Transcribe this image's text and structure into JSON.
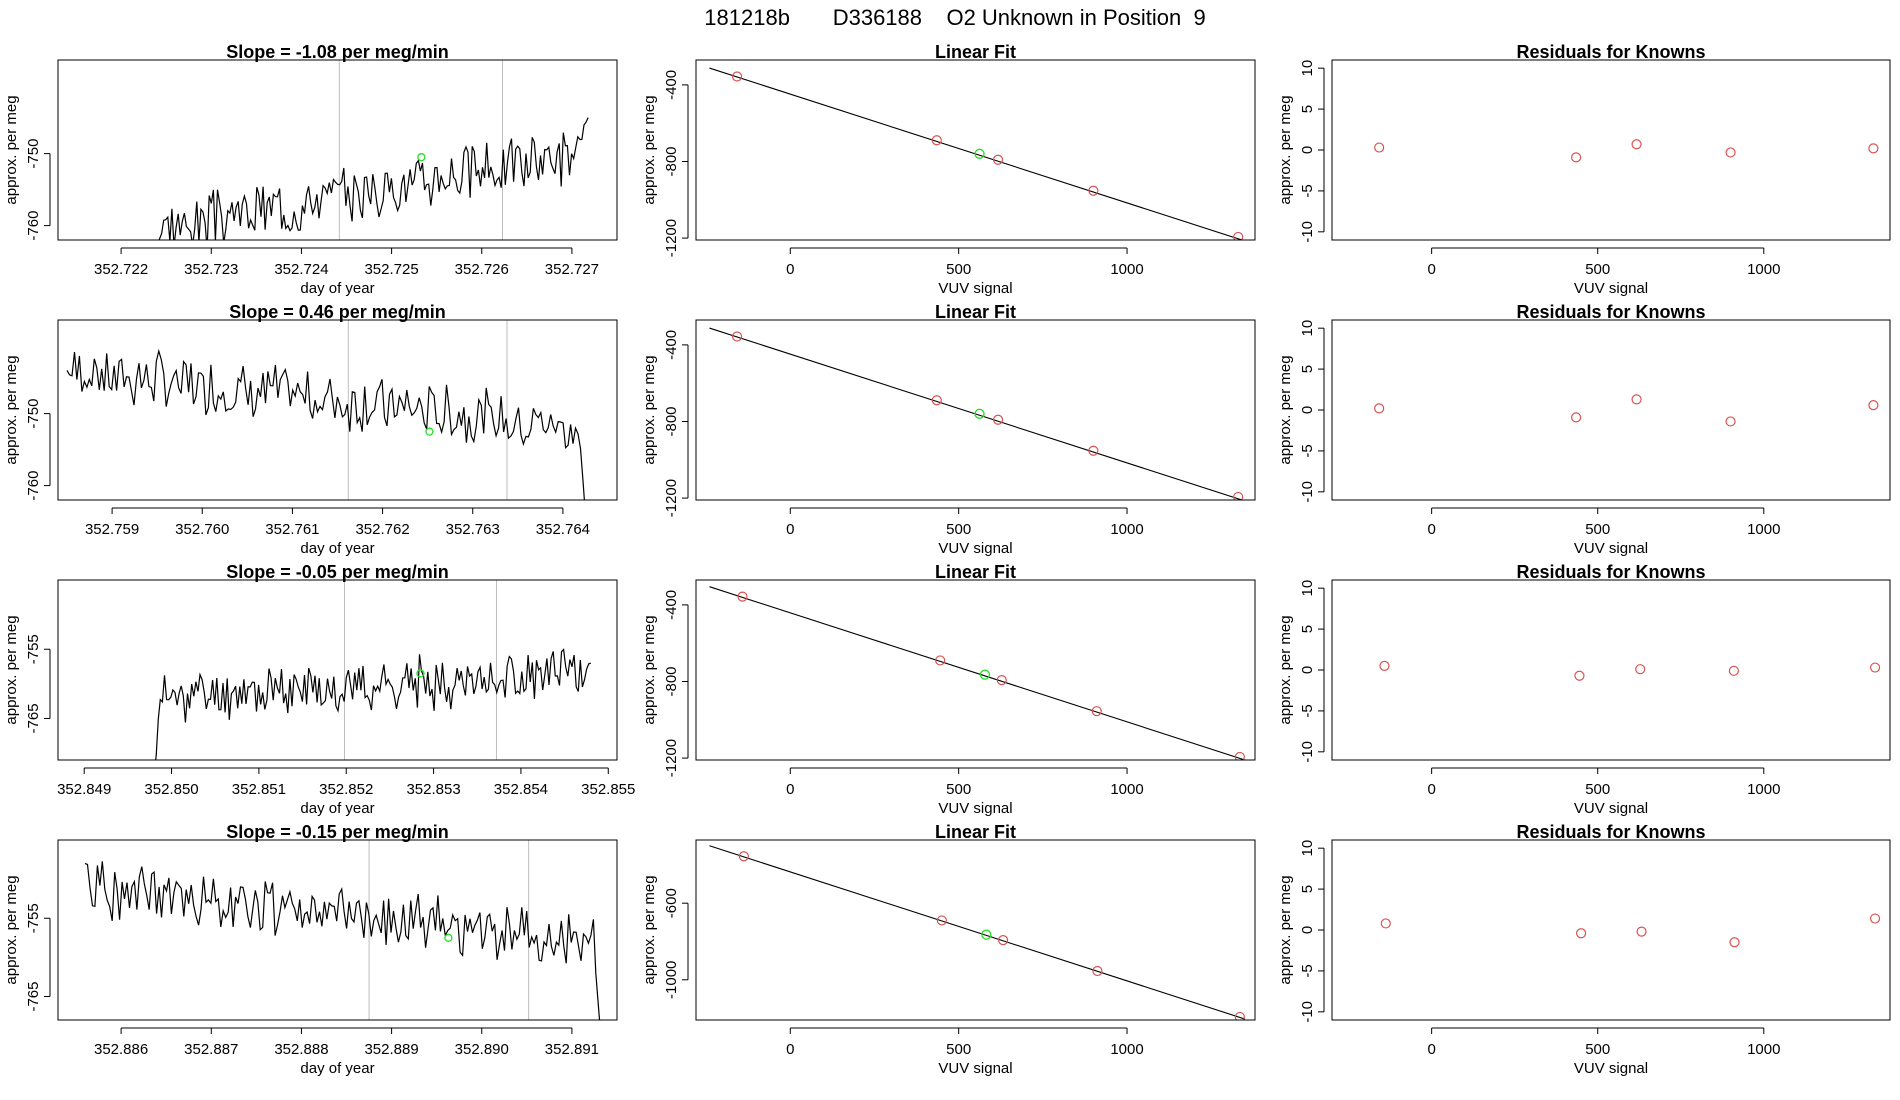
{
  "figure": {
    "title": "181218b       D336188    O2 Unknown in Position  9"
  },
  "colors": {
    "line": "#000000",
    "axis": "#000000",
    "vline": "#bebebe",
    "known_point": "#d9534f",
    "unknown_point": "#22dd22"
  },
  "chart_data": [
    {
      "type": "line",
      "panel": "ts-1",
      "title": "Slope =  -1.08  per meg/min",
      "xlabel": "day of year",
      "ylabel": "approx. per meg",
      "xlim": [
        352.7213,
        352.7275
      ],
      "ylim": [
        -762,
        -737
      ],
      "xticks": [
        352.722,
        352.723,
        352.724,
        352.725,
        352.726,
        352.727
      ],
      "xtick_labels": [
        "352.722",
        "352.723",
        "352.724",
        "352.725",
        "352.726",
        "352.727"
      ],
      "yticks": [
        -750,
        -760
      ],
      "ytick_labels": [
        "-750",
        "-760"
      ],
      "vlines": [
        352.72442,
        352.72623
      ],
      "marker": {
        "x": 352.72533,
        "y": -750.5
      },
      "series": {
        "x_start": 352.72238,
        "x_end": 352.72718,
        "y_start": -764,
        "y_end": -745,
        "mean": -750.5,
        "amplitude": 3.2,
        "trend_start": -760.5,
        "trend_end": -749.5,
        "seed": 3
      }
    },
    {
      "type": "line",
      "panel": "ts-2",
      "title": "Slope =  0.46  per meg/min",
      "xlabel": "day of year",
      "ylabel": "approx. per meg",
      "xlim": [
        352.7584,
        352.7646
      ],
      "ylim": [
        -762,
        -737
      ],
      "xticks": [
        352.759,
        352.76,
        352.761,
        352.762,
        352.763,
        352.764
      ],
      "xtick_labels": [
        "352.759",
        "352.760",
        "352.761",
        "352.762",
        "352.763",
        "352.764"
      ],
      "yticks": [
        -750,
        -760
      ],
      "ytick_labels": [
        "-750",
        "-760"
      ],
      "vlines": [
        352.76162,
        352.76338
      ],
      "marker": {
        "x": 352.76252,
        "y": -752.5
      },
      "series": {
        "x_start": 352.7585,
        "x_end": 352.76425,
        "y_start": -744,
        "y_end": -764,
        "mean": -752.5,
        "amplitude": 3.2,
        "trend_start": -744,
        "trend_end": -752,
        "seed": 7
      }
    },
    {
      "type": "line",
      "panel": "ts-3",
      "title": "Slope =  -0.05  per meg/min",
      "xlabel": "day of year",
      "ylabel": "approx. per meg",
      "xlim": [
        352.8487,
        352.8551
      ],
      "ylim": [
        -771,
        -745
      ],
      "xticks": [
        352.849,
        352.85,
        352.851,
        352.852,
        352.853,
        352.854,
        352.855
      ],
      "xtick_labels": [
        "352.849",
        "352.850",
        "352.851",
        "352.852",
        "352.853",
        "352.854",
        "352.855"
      ],
      "yticks": [
        -755,
        -765
      ],
      "ytick_labels": [
        "-755",
        "-765"
      ],
      "vlines": [
        352.85198,
        352.85372
      ],
      "marker": {
        "x": 352.85285,
        "y": -758.5
      },
      "series": {
        "x_start": 352.8498,
        "x_end": 352.8548,
        "y_start": -773,
        "y_end": -757,
        "mean": -758.5,
        "amplitude": 3.0,
        "trend_start": -762,
        "trend_end": -758.5,
        "seed": 11
      }
    },
    {
      "type": "line",
      "panel": "ts-4",
      "title": "Slope =  -0.15  per meg/min",
      "xlabel": "day of year",
      "ylabel": "approx. per meg",
      "xlim": [
        352.8853,
        352.8915
      ],
      "ylim": [
        -768,
        -745
      ],
      "xticks": [
        352.886,
        352.887,
        352.888,
        352.889,
        352.89,
        352.891
      ],
      "xtick_labels": [
        "352.886",
        "352.887",
        "352.888",
        "352.889",
        "352.890",
        "352.891"
      ],
      "yticks": [
        -755,
        -765
      ],
      "ytick_labels": [
        "-755",
        "-765"
      ],
      "vlines": [
        352.88875,
        352.89052
      ],
      "marker": {
        "x": 352.88963,
        "y": -757.5
      },
      "series": {
        "x_start": 352.8856,
        "x_end": 352.89132,
        "y_start": -748,
        "y_end": -770,
        "mean": -757.5,
        "amplitude": 3.0,
        "trend_start": -751,
        "trend_end": -758,
        "seed": 19
      }
    },
    {
      "type": "scatter",
      "panel": "fit-1",
      "title": "Linear Fit",
      "xlabel": "VUV signal",
      "ylabel": "approx. per meg",
      "xlim": [
        -280,
        1380
      ],
      "ylim": [
        -1210,
        -270
      ],
      "xticks": [
        0,
        500,
        1000
      ],
      "xtick_labels": [
        "0",
        "500",
        "1000"
      ],
      "yticks": [
        -400,
        -800,
        -1200
      ],
      "ytick_labels": [
        "-400",
        "-800",
        "-1200"
      ],
      "fit_line": {
        "x": [
          -240,
          1350
        ],
        "y": [
          -312,
          -1215
        ]
      },
      "points": [
        {
          "x": -158,
          "y": -356
        },
        {
          "x": 435,
          "y": -689
        },
        {
          "x": 617,
          "y": -791
        },
        {
          "x": 900,
          "y": -953
        },
        {
          "x": 1330,
          "y": -1194
        }
      ],
      "unknown": {
        "x": 562,
        "y": -760
      }
    },
    {
      "type": "scatter",
      "panel": "fit-2",
      "title": "Linear Fit",
      "xlabel": "VUV signal",
      "ylabel": "approx. per meg",
      "xlim": [
        -280,
        1380
      ],
      "ylim": [
        -1210,
        -270
      ],
      "xticks": [
        0,
        500,
        1000
      ],
      "xtick_labels": [
        "0",
        "500",
        "1000"
      ],
      "yticks": [
        -400,
        -800,
        -1200
      ],
      "ytick_labels": [
        "-400",
        "-800",
        "-1200"
      ],
      "fit_line": {
        "x": [
          -240,
          1350
        ],
        "y": [
          -312,
          -1215
        ]
      },
      "points": [
        {
          "x": -158,
          "y": -356
        },
        {
          "x": 435,
          "y": -689
        },
        {
          "x": 617,
          "y": -791
        },
        {
          "x": 900,
          "y": -953
        },
        {
          "x": 1330,
          "y": -1194
        }
      ],
      "unknown": {
        "x": 562,
        "y": -760
      }
    },
    {
      "type": "scatter",
      "panel": "fit-3",
      "title": "Linear Fit",
      "xlabel": "VUV signal",
      "ylabel": "approx. per meg",
      "xlim": [
        -280,
        1380
      ],
      "ylim": [
        -1210,
        -270
      ],
      "xticks": [
        0,
        500,
        1000
      ],
      "xtick_labels": [
        "0",
        "500",
        "1000"
      ],
      "yticks": [
        -400,
        -800,
        -1200
      ],
      "ytick_labels": [
        "-400",
        "-800",
        "-1200"
      ],
      "fit_line": {
        "x": [
          -240,
          1350
        ],
        "y": [
          -305,
          -1210
        ]
      },
      "points": [
        {
          "x": -142,
          "y": -357
        },
        {
          "x": 445,
          "y": -690
        },
        {
          "x": 628,
          "y": -793
        },
        {
          "x": 910,
          "y": -955
        },
        {
          "x": 1335,
          "y": -1194
        }
      ],
      "unknown": {
        "x": 578,
        "y": -764
      }
    },
    {
      "type": "scatter",
      "panel": "fit-4",
      "title": "Linear Fit",
      "xlabel": "VUV signal",
      "ylabel": "approx. per meg",
      "xlim": [
        -280,
        1380
      ],
      "ylim": [
        -1210,
        -270
      ],
      "xticks": [
        0,
        500,
        1000
      ],
      "xtick_labels": [
        "0",
        "500",
        "1000"
      ],
      "yticks": [
        -600,
        -1000
      ],
      "ytick_labels": [
        "-600",
        "-1000"
      ],
      "fit_line": {
        "x": [
          -240,
          1350
        ],
        "y": [
          -300,
          -1205
        ]
      },
      "points": [
        {
          "x": -138,
          "y": -355
        },
        {
          "x": 450,
          "y": -690
        },
        {
          "x": 632,
          "y": -793
        },
        {
          "x": 912,
          "y": -954
        },
        {
          "x": 1335,
          "y": -1194
        }
      ],
      "unknown": {
        "x": 582,
        "y": -764
      }
    },
    {
      "type": "scatter",
      "panel": "res-1",
      "title": "Residuals for Knowns",
      "xlabel": "VUV signal",
      "ylabel": "approx. per meg",
      "xlim": [
        -300,
        1380
      ],
      "ylim": [
        -11,
        11
      ],
      "xticks": [
        0,
        500,
        1000
      ],
      "xtick_labels": [
        "0",
        "500",
        "1000"
      ],
      "yticks": [
        10,
        5,
        0,
        -5,
        -10
      ],
      "ytick_labels": [
        "10",
        "5",
        "0",
        "-5",
        "-10"
      ],
      "points": [
        {
          "x": -158,
          "y": 0.3
        },
        {
          "x": 435,
          "y": -0.9
        },
        {
          "x": 617,
          "y": 0.7
        },
        {
          "x": 900,
          "y": -0.3
        },
        {
          "x": 1330,
          "y": 0.2
        }
      ]
    },
    {
      "type": "scatter",
      "panel": "res-2",
      "title": "Residuals for Knowns",
      "xlabel": "VUV signal",
      "ylabel": "approx. per meg",
      "xlim": [
        -300,
        1380
      ],
      "ylim": [
        -11,
        11
      ],
      "xticks": [
        0,
        500,
        1000
      ],
      "xtick_labels": [
        "0",
        "500",
        "1000"
      ],
      "yticks": [
        10,
        5,
        0,
        -5,
        -10
      ],
      "ytick_labels": [
        "10",
        "5",
        "0",
        "-5",
        "-10"
      ],
      "points": [
        {
          "x": -158,
          "y": 0.2
        },
        {
          "x": 435,
          "y": -0.9
        },
        {
          "x": 617,
          "y": 1.3
        },
        {
          "x": 900,
          "y": -1.4
        },
        {
          "x": 1330,
          "y": 0.6
        }
      ]
    },
    {
      "type": "scatter",
      "panel": "res-3",
      "title": "Residuals for Knowns",
      "xlabel": "VUV signal",
      "ylabel": "approx. per meg",
      "xlim": [
        -300,
        1380
      ],
      "ylim": [
        -11,
        11
      ],
      "xticks": [
        0,
        500,
        1000
      ],
      "xtick_labels": [
        "0",
        "500",
        "1000"
      ],
      "yticks": [
        10,
        5,
        0,
        -5,
        -10
      ],
      "ytick_labels": [
        "10",
        "5",
        "0",
        "-5",
        "-10"
      ],
      "points": [
        {
          "x": -142,
          "y": 0.5
        },
        {
          "x": 445,
          "y": -0.7
        },
        {
          "x": 628,
          "y": 0.1
        },
        {
          "x": 910,
          "y": -0.1
        },
        {
          "x": 1335,
          "y": 0.3
        }
      ]
    },
    {
      "type": "scatter",
      "panel": "res-4",
      "title": "Residuals for Knowns",
      "xlabel": "VUV signal",
      "ylabel": "approx. per meg",
      "xlim": [
        -300,
        1380
      ],
      "ylim": [
        -11,
        11
      ],
      "xticks": [
        0,
        500,
        1000
      ],
      "xtick_labels": [
        "0",
        "500",
        "1000"
      ],
      "yticks": [
        10,
        5,
        0,
        -5,
        -10
      ],
      "ytick_labels": [
        "10",
        "5",
        "0",
        "-5",
        "-10"
      ],
      "points": [
        {
          "x": -138,
          "y": 0.8
        },
        {
          "x": 450,
          "y": -0.4
        },
        {
          "x": 632,
          "y": -0.2
        },
        {
          "x": 912,
          "y": -1.5
        },
        {
          "x": 1335,
          "y": 1.4
        }
      ]
    }
  ]
}
